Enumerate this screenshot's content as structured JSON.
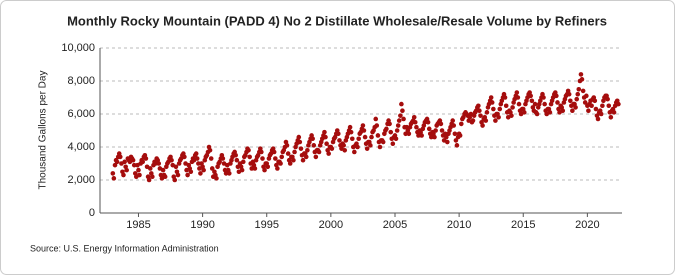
{
  "chart_data": {
    "type": "scatter",
    "title": "Monthly Rocky Mountain (PADD 4) No 2 Distillate Wholesale/Resale Volume by Refiners",
    "y_label": "Thousand Gallons per Day",
    "source": "Source: U.S. Energy Information Administration",
    "color": "#a50d0d",
    "grid": true,
    "xlim": [
      1982,
      2022.7
    ],
    "xticks": [
      1985,
      1990,
      1995,
      2000,
      2005,
      2010,
      2015,
      2020
    ],
    "ylim": [
      0,
      10000
    ],
    "yticks": [
      0,
      {
        "value": 2000,
        "label": "2,000"
      },
      {
        "value": 4000,
        "label": "4,000"
      },
      {
        "value": 6000,
        "label": "6,000"
      },
      {
        "value": 8000,
        "label": "8,000"
      },
      {
        "value": 10000,
        "label": "10,000"
      }
    ],
    "x": [
      1983,
      1983.08,
      1983.17,
      1983.25,
      1983.33,
      1983.42,
      1983.5,
      1983.58,
      1983.67,
      1983.75,
      1983.83,
      1983.92,
      1984,
      1984.08,
      1984.17,
      1984.25,
      1984.33,
      1984.42,
      1984.5,
      1984.58,
      1984.67,
      1984.75,
      1984.83,
      1984.92,
      1985,
      1985.08,
      1985.17,
      1985.25,
      1985.33,
      1985.42,
      1985.5,
      1985.58,
      1985.67,
      1985.75,
      1985.83,
      1985.92,
      1986,
      1986.08,
      1986.17,
      1986.25,
      1986.33,
      1986.42,
      1986.5,
      1986.58,
      1986.67,
      1986.75,
      1986.83,
      1986.92,
      1987,
      1987.08,
      1987.17,
      1987.25,
      1987.33,
      1987.42,
      1987.5,
      1987.58,
      1987.67,
      1987.75,
      1987.83,
      1987.92,
      1988,
      1988.08,
      1988.17,
      1988.25,
      1988.33,
      1988.42,
      1988.5,
      1988.58,
      1988.67,
      1988.75,
      1988.83,
      1988.92,
      1989,
      1989.08,
      1989.17,
      1989.25,
      1989.33,
      1989.42,
      1989.5,
      1989.58,
      1989.67,
      1989.75,
      1989.83,
      1989.92,
      1990,
      1990.08,
      1990.17,
      1990.25,
      1990.33,
      1990.42,
      1990.5,
      1990.58,
      1990.67,
      1990.75,
      1990.83,
      1990.92,
      1991,
      1991.08,
      1991.17,
      1991.25,
      1991.33,
      1991.42,
      1991.5,
      1991.58,
      1991.67,
      1991.75,
      1991.83,
      1991.92,
      1992,
      1992.08,
      1992.17,
      1992.25,
      1992.33,
      1992.42,
      1992.5,
      1992.58,
      1992.67,
      1992.75,
      1992.83,
      1992.92,
      1993,
      1993.08,
      1993.17,
      1993.25,
      1993.33,
      1993.42,
      1993.5,
      1993.58,
      1993.67,
      1993.75,
      1993.83,
      1993.92,
      1994,
      1994.08,
      1994.17,
      1994.25,
      1994.33,
      1994.42,
      1994.5,
      1994.58,
      1994.67,
      1994.75,
      1994.83,
      1994.92,
      1995,
      1995.08,
      1995.17,
      1995.25,
      1995.33,
      1995.42,
      1995.5,
      1995.58,
      1995.67,
      1995.75,
      1995.83,
      1995.92,
      1996,
      1996.08,
      1996.17,
      1996.25,
      1996.33,
      1996.42,
      1996.5,
      1996.58,
      1996.67,
      1996.75,
      1996.83,
      1996.92,
      1997,
      1997.08,
      1997.17,
      1997.25,
      1997.33,
      1997.42,
      1997.5,
      1997.58,
      1997.67,
      1997.75,
      1997.83,
      1997.92,
      1998,
      1998.08,
      1998.17,
      1998.25,
      1998.33,
      1998.42,
      1998.5,
      1998.58,
      1998.67,
      1998.75,
      1998.83,
      1998.92,
      1999,
      1999.08,
      1999.17,
      1999.25,
      1999.33,
      1999.42,
      1999.5,
      1999.58,
      1999.67,
      1999.75,
      1999.83,
      1999.92,
      2000,
      2000.08,
      2000.17,
      2000.25,
      2000.33,
      2000.42,
      2000.5,
      2000.58,
      2000.67,
      2000.75,
      2000.83,
      2000.92,
      2001,
      2001.08,
      2001.17,
      2001.25,
      2001.33,
      2001.42,
      2001.5,
      2001.58,
      2001.67,
      2001.75,
      2001.83,
      2001.92,
      2002,
      2002.08,
      2002.17,
      2002.25,
      2002.33,
      2002.42,
      2002.5,
      2002.58,
      2002.67,
      2002.75,
      2002.83,
      2002.92,
      2003,
      2003.08,
      2003.17,
      2003.25,
      2003.33,
      2003.42,
      2003.5,
      2003.58,
      2003.67,
      2003.75,
      2003.83,
      2003.92,
      2004,
      2004.08,
      2004.17,
      2004.25,
      2004.33,
      2004.42,
      2004.5,
      2004.58,
      2004.67,
      2004.75,
      2004.83,
      2004.92,
      2005,
      2005.08,
      2005.17,
      2005.25,
      2005.33,
      2005.42,
      2005.5,
      2005.58,
      2005.67,
      2005.75,
      2005.83,
      2005.92,
      2006,
      2006.08,
      2006.17,
      2006.25,
      2006.33,
      2006.42,
      2006.5,
      2006.58,
      2006.67,
      2006.75,
      2006.83,
      2006.92,
      2007,
      2007.08,
      2007.17,
      2007.25,
      2007.33,
      2007.42,
      2007.5,
      2007.58,
      2007.67,
      2007.75,
      2007.83,
      2007.92,
      2008,
      2008.08,
      2008.17,
      2008.25,
      2008.33,
      2008.42,
      2008.5,
      2008.58,
      2008.67,
      2008.75,
      2008.83,
      2008.92,
      2009,
      2009.08,
      2009.17,
      2009.25,
      2009.33,
      2009.42,
      2009.5,
      2009.58,
      2009.67,
      2009.75,
      2009.83,
      2009.92,
      2010,
      2010.08,
      2010.17,
      2010.25,
      2010.33,
      2010.42,
      2010.5,
      2010.58,
      2010.67,
      2010.75,
      2010.83,
      2010.92,
      2011,
      2011.08,
      2011.17,
      2011.25,
      2011.33,
      2011.42,
      2011.5,
      2011.58,
      2011.67,
      2011.75,
      2011.83,
      2011.92,
      2012,
      2012.08,
      2012.17,
      2012.25,
      2012.33,
      2012.42,
      2012.5,
      2012.58,
      2012.67,
      2012.75,
      2012.83,
      2012.92,
      2013,
      2013.08,
      2013.17,
      2013.25,
      2013.33,
      2013.42,
      2013.5,
      2013.58,
      2013.67,
      2013.75,
      2013.83,
      2013.92,
      2014,
      2014.08,
      2014.17,
      2014.25,
      2014.33,
      2014.42,
      2014.5,
      2014.58,
      2014.67,
      2014.75,
      2014.83,
      2014.92,
      2015,
      2015.08,
      2015.17,
      2015.25,
      2015.33,
      2015.42,
      2015.5,
      2015.58,
      2015.67,
      2015.75,
      2015.83,
      2015.92,
      2016,
      2016.08,
      2016.17,
      2016.25,
      2016.33,
      2016.42,
      2016.5,
      2016.58,
      2016.67,
      2016.75,
      2016.83,
      2016.92,
      2017,
      2017.08,
      2017.17,
      2017.25,
      2017.33,
      2017.42,
      2017.5,
      2017.58,
      2017.67,
      2017.75,
      2017.83,
      2017.92,
      2018,
      2018.08,
      2018.17,
      2018.25,
      2018.33,
      2018.42,
      2018.5,
      2018.58,
      2018.67,
      2018.75,
      2018.83,
      2018.92,
      2019,
      2019.08,
      2019.17,
      2019.25,
      2019.33,
      2019.42,
      2019.5,
      2019.58,
      2019.67,
      2019.75,
      2019.83,
      2019.92,
      2020,
      2020.08,
      2020.17,
      2020.25,
      2020.33,
      2020.42,
      2020.5,
      2020.58,
      2020.67,
      2020.75,
      2020.83,
      2020.92,
      2021,
      2021.08,
      2021.17,
      2021.25,
      2021.33,
      2021.42,
      2021.5,
      2021.58,
      2021.67,
      2021.75,
      2021.83,
      2021.92,
      2022,
      2022.08,
      2022.17,
      2022.25,
      2022.33,
      2022.42
    ],
    "values": [
      2400,
      2100,
      2900,
      3200,
      3100,
      3400,
      3600,
      3400,
      3000,
      2500,
      2300,
      3100,
      2800,
      2600,
      3300,
      3200,
      3100,
      3400,
      3300,
      3200,
      2900,
      2400,
      2200,
      2900,
      2600,
      2300,
      3000,
      3200,
      3100,
      3400,
      3500,
      3300,
      2800,
      2200,
      2000,
      2700,
      2400,
      2200,
      2900,
      3100,
      3000,
      3300,
      3200,
      3000,
      2700,
      2300,
      2100,
      2600,
      2300,
      2200,
      2800,
      3000,
      3100,
      3300,
      3400,
      3200,
      2900,
      2200,
      2000,
      2800,
      2500,
      2300,
      3000,
      3200,
      3300,
      3500,
      3600,
      3400,
      3000,
      2600,
      2300,
      2900,
      2700,
      2500,
      3100,
      3300,
      3200,
      3500,
      3600,
      3300,
      3000,
      2700,
      2400,
      3000,
      2800,
      2600,
      3200,
      3400,
      3500,
      3700,
      4000,
      3800,
      3300,
      2700,
      2200,
      2500,
      2300,
      2100,
      2800,
      3000,
      3100,
      3300,
      3500,
      3300,
      3000,
      2600,
      2400,
      2900,
      2600,
      2400,
      3000,
      3200,
      3400,
      3600,
      3700,
      3500,
      3200,
      2800,
      2500,
      3000,
      2800,
      2600,
      3100,
      3400,
      3500,
      3700,
      3900,
      3800,
      3400,
      3000,
      2700,
      3100,
      2900,
      2700,
      3200,
      3400,
      3500,
      3700,
      3900,
      3700,
      3300,
      2800,
      2600,
      3000,
      3000,
      2800,
      3300,
      3500,
      3600,
      3800,
      3900,
      3700,
      3300,
      2900,
      2700,
      3100,
      3100,
      3000,
      3400,
      3700,
      3800,
      4000,
      4300,
      4100,
      3600,
      3200,
      3000,
      3400,
      3400,
      3200,
      3700,
      4000,
      4200,
      4400,
      4600,
      4300,
      3900,
      3500,
      3200,
      3600,
      3600,
      3400,
      3800,
      4100,
      4300,
      4500,
      4700,
      4500,
      4100,
      3700,
      3400,
      3800,
      3800,
      3700,
      4100,
      4300,
      4500,
      4700,
      4900,
      4600,
      4200,
      3800,
      3600,
      4000,
      4000,
      3900,
      4300,
      4500,
      4600,
      4800,
      5000,
      4800,
      4400,
      4100,
      3900,
      4200,
      4100,
      3800,
      4400,
      4600,
      4800,
      5000,
      5200,
      4900,
      4500,
      4000,
      3700,
      4100,
      4200,
      4000,
      4500,
      4800,
      4900,
      5100,
      5300,
      5000,
      4600,
      4200,
      3900,
      4300,
      4300,
      4100,
      4600,
      4900,
      5000,
      5200,
      5700,
      5300,
      4700,
      4300,
      4000,
      4400,
      4400,
      4300,
      4800,
      5000,
      5100,
      5400,
      5600,
      5400,
      4900,
      4500,
      4200,
      4600,
      4700,
      4500,
      5000,
      5300,
      5600,
      5900,
      6600,
      6200,
      5700,
      5200,
      4800,
      5200,
      5000,
      4800,
      5200,
      5400,
      5500,
      5600,
      5800,
      5500,
      5200,
      4900,
      4700,
      5000,
      4900,
      4700,
      5100,
      5300,
      5500,
      5600,
      5700,
      5500,
      5100,
      4800,
      4600,
      4900,
      4800,
      4600,
      5000,
      5300,
      5400,
      5500,
      5600,
      5400,
      5000,
      4700,
      4400,
      4800,
      4600,
      4300,
      4800,
      5000,
      5200,
      5400,
      5600,
      5300,
      4800,
      4400,
      4100,
      4600,
      4800,
      4700,
      5400,
      5700,
      5800,
      6000,
      6100,
      6000,
      5900,
      5600,
      5800,
      6000,
      5500,
      5600,
      5900,
      6100,
      6200,
      6400,
      6500,
      6200,
      5900,
      5500,
      5300,
      5700,
      5800,
      5600,
      6100,
      6400,
      6600,
      6800,
      7000,
      6700,
      6300,
      5900,
      5600,
      6000,
      6000,
      5800,
      6300,
      6600,
      6800,
      7000,
      7200,
      7000,
      6500,
      6100,
      5800,
      6200,
      6100,
      5900,
      6400,
      6700,
      6900,
      7100,
      7300,
      7000,
      6600,
      6200,
      6000,
      6300,
      6300,
      6100,
      6600,
      6800,
      7000,
      7200,
      7300,
      7100,
      6800,
      6400,
      6200,
      6600,
      6100,
      6000,
      6400,
      6600,
      6800,
      7000,
      7200,
      7000,
      6600,
      6200,
      6000,
      6300,
      6300,
      6100,
      6600,
      6800,
      7000,
      7200,
      7300,
      7100,
      6700,
      6300,
      6100,
      6500,
      6400,
      6200,
      6700,
      6900,
      7100,
      7200,
      7400,
      7200,
      6800,
      6500,
      6200,
      6600,
      6600,
      6400,
      6900,
      7200,
      7500,
      8000,
      8400,
      8100,
      7400,
      7000,
      6700,
      7100,
      6500,
      6200,
      6600,
      6800,
      6500,
      6900,
      7000,
      6800,
      6300,
      5900,
      5700,
      6100,
      6200,
      6000,
      6500,
      6800,
      7000,
      7100,
      7100,
      6900,
      6500,
      6100,
      5800,
      6200,
      6300,
      6100,
      6500,
      6700,
      6800,
      6600
    ]
  }
}
